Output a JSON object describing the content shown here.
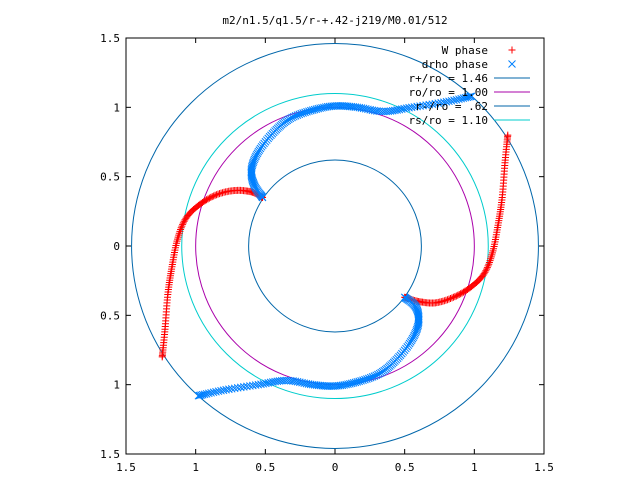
{
  "chart_data": {
    "type": "scatter",
    "title": "m2/n1.5/q1.5/r-+.42-j219/M0.01/512",
    "xlabel": "",
    "ylabel": "",
    "xlim": [
      -1.5,
      1.5
    ],
    "ylim": [
      -1.5,
      1.5
    ],
    "x_tick_labels": [
      "1.5",
      "1",
      "0.5",
      "0",
      "0.5",
      "1",
      "1.5"
    ],
    "y_tick_labels": [
      "1.5",
      "1",
      "0.5",
      "0",
      "0.5",
      "1",
      "1.5"
    ],
    "grid": false,
    "legend_position": "top-right",
    "series": [
      {
        "name": "W phase",
        "marker": "+",
        "color": "#ff0000",
        "arms": [
          [
            [
              -0.52,
              0.35
            ],
            [
              -0.6,
              0.39
            ],
            [
              -0.72,
              0.4
            ],
            [
              -0.85,
              0.37
            ],
            [
              -0.97,
              0.3
            ],
            [
              -1.07,
              0.2
            ],
            [
              -1.13,
              0.05
            ],
            [
              -1.17,
              -0.15
            ],
            [
              -1.2,
              -0.35
            ],
            [
              -1.22,
              -0.6
            ],
            [
              -1.24,
              -0.8
            ]
          ],
          [
            [
              0.5,
              -0.37
            ],
            [
              0.6,
              -0.4
            ],
            [
              0.72,
              -0.41
            ],
            [
              0.85,
              -0.37
            ],
            [
              0.97,
              -0.3
            ],
            [
              1.07,
              -0.2
            ],
            [
              1.13,
              -0.05
            ],
            [
              1.17,
              0.15
            ],
            [
              1.2,
              0.35
            ],
            [
              1.22,
              0.6
            ],
            [
              1.24,
              0.8
            ]
          ]
        ]
      },
      {
        "name": "drho phase",
        "marker": "x",
        "color": "#0080ff",
        "arms": [
          [
            [
              -0.52,
              0.35
            ],
            [
              -0.58,
              0.44
            ],
            [
              -0.6,
              0.55
            ],
            [
              -0.55,
              0.68
            ],
            [
              -0.44,
              0.82
            ],
            [
              -0.32,
              0.92
            ],
            [
              -0.16,
              0.98
            ],
            [
              0.0,
              1.01
            ],
            [
              0.16,
              1.0
            ],
            [
              0.35,
              0.97
            ],
            [
              0.55,
              1.0
            ],
            [
              0.8,
              1.04
            ],
            [
              0.98,
              1.08
            ]
          ],
          [
            [
              0.5,
              -0.37
            ],
            [
              0.58,
              -0.44
            ],
            [
              0.6,
              -0.55
            ],
            [
              0.55,
              -0.68
            ],
            [
              0.44,
              -0.82
            ],
            [
              0.32,
              -0.92
            ],
            [
              0.16,
              -0.98
            ],
            [
              0.0,
              -1.01
            ],
            [
              -0.16,
              -1.0
            ],
            [
              -0.35,
              -0.97
            ],
            [
              -0.55,
              -1.0
            ],
            [
              -0.8,
              -1.04
            ],
            [
              -0.98,
              -1.08
            ]
          ]
        ]
      }
    ],
    "circles": [
      {
        "label": "r+/ro = 1.46",
        "r": 1.46,
        "color": "#0066aa"
      },
      {
        "label": "ro/ro = 1.00",
        "r": 1.0,
        "color": "#aa00aa"
      },
      {
        "label": "r-/ro = .62",
        "r": 0.62,
        "color": "#0066aa"
      },
      {
        "label": "rs/ro = 1.10",
        "r": 1.1,
        "color": "#00cccc"
      }
    ]
  }
}
